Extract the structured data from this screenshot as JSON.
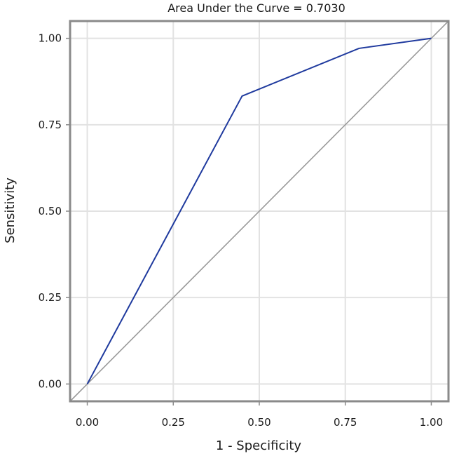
{
  "chart_data": {
    "type": "line",
    "title": "Area Under the Curve = 0.7030",
    "xlabel": "1 - Specificity",
    "ylabel": "Sensitivity",
    "xlim": [
      -0.05,
      1.05
    ],
    "ylim": [
      -0.05,
      1.05
    ],
    "xticks": [
      0,
      0.25,
      0.5,
      0.75,
      1
    ],
    "yticks": [
      0,
      0.25,
      0.5,
      0.75,
      1
    ],
    "xtick_labels": [
      "0.00",
      "0.25",
      "0.50",
      "0.75",
      "1.00"
    ],
    "ytick_labels": [
      "0.00",
      "0.25",
      "0.50",
      "0.75",
      "1.00"
    ],
    "grid": true,
    "legend": "none",
    "series": [
      {
        "role": "roc",
        "color": "#1f3a9e",
        "x": [
          0,
          0.45,
          0.79,
          1
        ],
        "y": [
          0,
          0.833,
          0.971,
          1
        ]
      },
      {
        "role": "reference",
        "color": "#9a9a9a",
        "x": [
          -0.05,
          1.05
        ],
        "y": [
          -0.05,
          1.05
        ]
      }
    ]
  }
}
